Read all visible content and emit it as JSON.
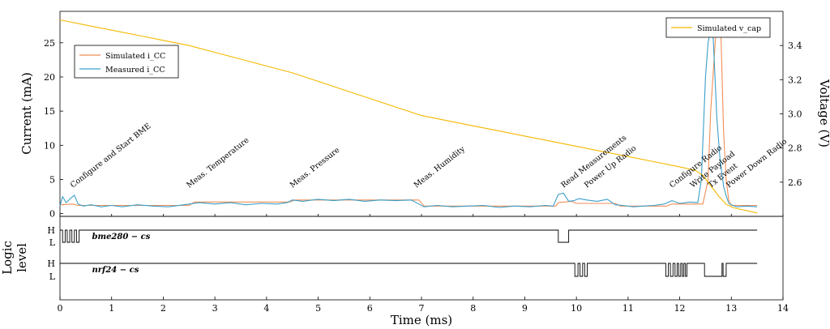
{
  "chart_data": {
    "type": "line",
    "xlabel": "Time (ms)",
    "xlim": [
      0,
      14
    ],
    "x_ticks": [
      "0",
      "1",
      "2",
      "3",
      "4",
      "5",
      "6",
      "7",
      "8",
      "9",
      "10",
      "11",
      "12",
      "13",
      "14"
    ],
    "ylabel_left": "Current (mA)",
    "ylim_left": [
      -0.4,
      29.6
    ],
    "y_ticks_left": [
      "0",
      "5",
      "10",
      "15",
      "20",
      "25"
    ],
    "ylabel_right": "Voltage (V)",
    "ylim_right": [
      2.4,
      3.6
    ],
    "y_ticks_right": [
      "2.6",
      "2.8",
      "3.0",
      "3.2",
      "3.4"
    ],
    "legend_current": [
      "Simulated i_CC",
      "Measured i_CC"
    ],
    "legend_voltage": [
      "Simulated v_cap"
    ],
    "series": [
      {
        "name": "Simulated i_CC",
        "color": "#f28e56",
        "axis": "left",
        "x": [
          0,
          0.25,
          0.35,
          2.5,
          2.6,
          4.45,
          4.55,
          6.95,
          7.05,
          9.6,
          9.65,
          9.9,
          10.0,
          10.75,
          10.85,
          11.75,
          11.85,
          12.45,
          12.55,
          12.6,
          12.7,
          12.75,
          12.8,
          12.85,
          12.9,
          12.95,
          13.0,
          13.5
        ],
        "y": [
          1.3,
          1.4,
          1.2,
          1.2,
          1.7,
          1.7,
          2.0,
          2.0,
          1.1,
          1.1,
          1.6,
          1.8,
          1.5,
          1.5,
          1.1,
          1.1,
          1.4,
          1.4,
          5,
          15,
          26.5,
          27,
          26,
          12,
          5,
          2,
          1.2,
          1.2
        ]
      },
      {
        "name": "Measured i_CC",
        "color": "#3a9fc9",
        "axis": "left",
        "x": [
          0,
          0.05,
          0.12,
          0.2,
          0.28,
          0.35,
          0.45,
          0.6,
          0.8,
          1.0,
          1.2,
          1.5,
          1.8,
          2.1,
          2.4,
          2.7,
          3.0,
          3.3,
          3.6,
          3.9,
          4.2,
          4.4,
          4.5,
          4.7,
          5.0,
          5.3,
          5.6,
          5.9,
          6.2,
          6.5,
          6.8,
          6.95,
          7.05,
          7.3,
          7.6,
          7.9,
          8.2,
          8.5,
          8.8,
          9.1,
          9.4,
          9.55,
          9.65,
          9.75,
          9.85,
          9.95,
          10.05,
          10.2,
          10.4,
          10.6,
          10.75,
          10.9,
          11.1,
          11.3,
          11.5,
          11.7,
          11.85,
          12.0,
          12.2,
          12.35,
          12.42,
          12.5,
          12.55,
          12.6,
          12.65,
          12.72,
          12.78,
          12.85,
          12.9,
          12.95,
          13.0,
          13.1,
          13.3,
          13.5
        ],
        "y": [
          1.1,
          2.5,
          1.6,
          2.2,
          2.7,
          1.4,
          1.1,
          1.3,
          1.0,
          1.2,
          1.0,
          1.3,
          1.1,
          1.0,
          1.3,
          1.6,
          1.4,
          1.6,
          1.3,
          1.5,
          1.4,
          1.6,
          2.0,
          1.8,
          2.1,
          1.9,
          2.1,
          1.8,
          2.0,
          1.9,
          2.0,
          1.4,
          1.0,
          1.2,
          1.0,
          1.1,
          1.2,
          0.9,
          1.1,
          1.0,
          1.2,
          1.1,
          2.8,
          3.0,
          1.8,
          1.9,
          2.2,
          2.0,
          1.8,
          2.1,
          1.3,
          1.2,
          1.0,
          1.1,
          1.2,
          1.4,
          1.9,
          1.5,
          1.7,
          1.6,
          5,
          20,
          25,
          27,
          25.5,
          14,
          8,
          4,
          2.6,
          1.5,
          1.3,
          1.0,
          1.1,
          1.0
        ]
      },
      {
        "name": "Simulated v_cap",
        "color": "#f5b800",
        "axis": "right",
        "x": [
          0,
          0.5,
          1.0,
          1.5,
          2.0,
          2.5,
          3.0,
          3.5,
          4.0,
          4.5,
          5.0,
          5.5,
          6.0,
          6.5,
          7.0,
          7.5,
          8.0,
          8.5,
          9.0,
          9.5,
          10.0,
          10.5,
          11.0,
          11.5,
          12.0,
          12.3,
          12.45,
          12.6,
          12.75,
          12.9,
          13.05,
          13.2,
          13.35,
          13.5
        ],
        "y": [
          3.55,
          3.52,
          3.49,
          3.46,
          3.43,
          3.4,
          3.36,
          3.32,
          3.28,
          3.24,
          3.19,
          3.14,
          3.09,
          3.04,
          2.99,
          2.96,
          2.93,
          2.9,
          2.87,
          2.84,
          2.81,
          2.78,
          2.75,
          2.72,
          2.69,
          2.67,
          2.64,
          2.58,
          2.52,
          2.47,
          2.45,
          2.44,
          2.43,
          2.42
        ]
      }
    ],
    "annotations": [
      {
        "x": 0.25,
        "text": "Configure and Start BME"
      },
      {
        "x": 2.5,
        "text": "Meas. Temperature"
      },
      {
        "x": 4.5,
        "text": "Meas. Pressure"
      },
      {
        "x": 6.9,
        "text": "Meas. Humidity"
      },
      {
        "x": 9.75,
        "text": "Read Measurements"
      },
      {
        "x": 10.2,
        "text": "Power Up Radio"
      },
      {
        "x": 11.85,
        "text": "Configure Radio"
      },
      {
        "x": 12.25,
        "text": "Write Payload"
      },
      {
        "x": 12.6,
        "text": "Tx Event"
      },
      {
        "x": 12.95,
        "text": "Power Down Radio"
      }
    ],
    "logic": {
      "ylabel": [
        "Logic",
        "level"
      ],
      "levels": [
        "H",
        "L"
      ],
      "signals": [
        {
          "name": "bme280 − cs",
          "edges": [
            {
              "x": 0.05,
              "level": "L"
            },
            {
              "x": 0.1,
              "level": "H"
            },
            {
              "x": 0.14,
              "level": "L"
            },
            {
              "x": 0.19,
              "level": "H"
            },
            {
              "x": 0.23,
              "level": "L"
            },
            {
              "x": 0.28,
              "level": "H"
            },
            {
              "x": 0.32,
              "level": "L"
            },
            {
              "x": 0.37,
              "level": "H"
            },
            {
              "x": 9.65,
              "level": "L"
            },
            {
              "x": 9.85,
              "level": "H"
            }
          ]
        },
        {
          "name": "nrf24 − cs",
          "edges": [
            {
              "x": 9.97,
              "level": "L"
            },
            {
              "x": 10.03,
              "level": "H"
            },
            {
              "x": 10.07,
              "level": "L"
            },
            {
              "x": 10.12,
              "level": "H"
            },
            {
              "x": 10.16,
              "level": "L"
            },
            {
              "x": 10.21,
              "level": "H"
            },
            {
              "x": 11.73,
              "level": "L"
            },
            {
              "x": 11.78,
              "level": "H"
            },
            {
              "x": 11.82,
              "level": "L"
            },
            {
              "x": 11.87,
              "level": "H"
            },
            {
              "x": 11.91,
              "level": "L"
            },
            {
              "x": 11.95,
              "level": "H"
            },
            {
              "x": 11.98,
              "level": "L"
            },
            {
              "x": 12.02,
              "level": "H"
            },
            {
              "x": 12.05,
              "level": "L"
            },
            {
              "x": 12.08,
              "level": "H"
            },
            {
              "x": 12.11,
              "level": "L"
            },
            {
              "x": 12.14,
              "level": "H"
            },
            {
              "x": 12.48,
              "level": "L"
            },
            {
              "x": 12.82,
              "level": "H"
            },
            {
              "x": 12.84,
              "level": "L"
            },
            {
              "x": 12.9,
              "level": "H"
            }
          ]
        }
      ],
      "x_end": 13.5
    },
    "grid": false,
    "legend_placement": [
      "top-left",
      "top-right"
    ]
  }
}
